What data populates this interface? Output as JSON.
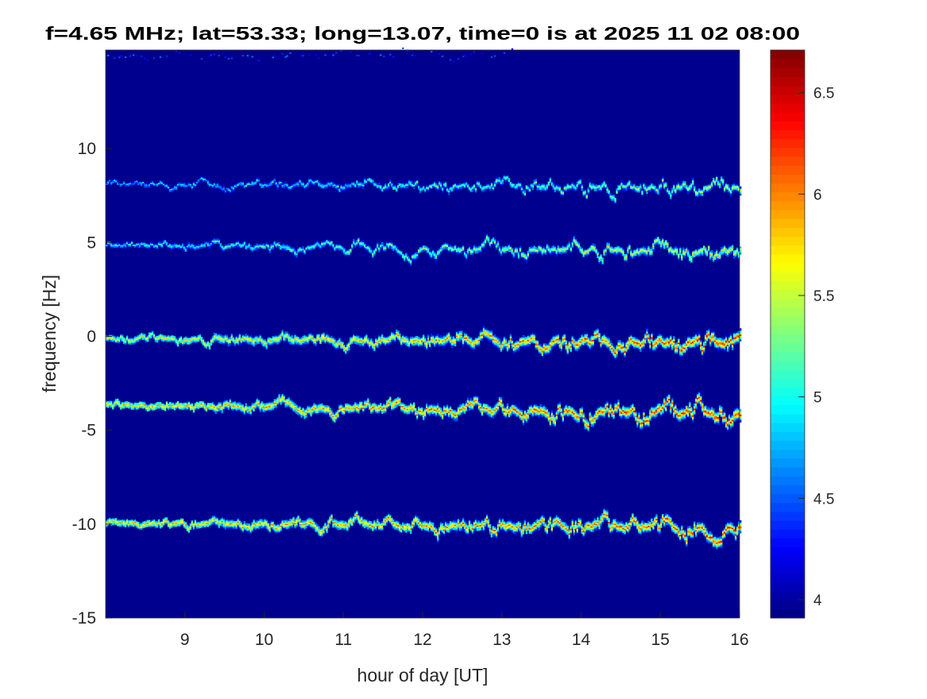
{
  "chart_data": {
    "type": "heatmap",
    "title": "f=4.65 MHz;  lat=53.33; long=13.07, time=0 is at 2025 11 02 08:00",
    "xlabel": "hour of day [UT]",
    "ylabel": "frequency [Hz]",
    "xlim": [
      8,
      16
    ],
    "ylim": [
      -15,
      15.25
    ],
    "xticks": [
      "9",
      "10",
      "11",
      "12",
      "13",
      "14",
      "15",
      "16"
    ],
    "yticks": [
      "-15",
      "-10",
      "-5",
      "0",
      "5",
      "10"
    ],
    "colormap": "jet",
    "background_color": "#00008f",
    "colorbar": {
      "limits": [
        3.91,
        6.71
      ],
      "ticks": [
        "4",
        "4.5",
        "5",
        "5.5",
        "6",
        "6.5"
      ]
    },
    "traces": [
      {
        "freq_start": 14.95,
        "freq_end": 14.95,
        "hour_start": 8.0,
        "hour_end": 13.2,
        "peak_start": 4.6,
        "peak_end": 4.6,
        "sparse": true
      },
      {
        "freq_start": 8.1,
        "freq_end": 7.9,
        "hour_start": 8.0,
        "hour_end": 16.0,
        "peak_start": 5.0,
        "peak_end": 5.8
      },
      {
        "freq_start": 4.85,
        "freq_end": 4.5,
        "hour_start": 8.0,
        "hour_end": 16.0,
        "peak_start": 5.2,
        "peak_end": 6.0
      },
      {
        "freq_start": -0.1,
        "freq_end": -0.4,
        "hour_start": 8.0,
        "hour_end": 16.0,
        "peak_start": 5.8,
        "peak_end": 6.6
      },
      {
        "freq_start": -3.65,
        "freq_end": -4.15,
        "hour_start": 8.0,
        "hour_end": 16.0,
        "peak_start": 6.0,
        "peak_end": 6.6
      },
      {
        "freq_start": -9.95,
        "freq_end": -10.2,
        "hour_start": 8.0,
        "hour_end": 16.0,
        "peak_start": 6.0,
        "peak_end": 6.5
      }
    ]
  }
}
